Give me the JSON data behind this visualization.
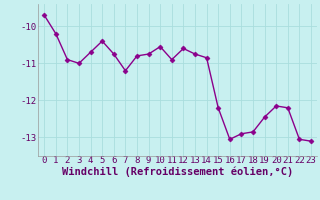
{
  "x": [
    0,
    1,
    2,
    3,
    4,
    5,
    6,
    7,
    8,
    9,
    10,
    11,
    12,
    13,
    14,
    15,
    16,
    17,
    18,
    19,
    20,
    21,
    22,
    23
  ],
  "y": [
    -9.7,
    -10.2,
    -10.9,
    -11.0,
    -10.7,
    -10.4,
    -10.75,
    -11.2,
    -10.8,
    -10.75,
    -10.55,
    -10.9,
    -10.6,
    -10.75,
    -10.85,
    -12.2,
    -13.05,
    -12.9,
    -12.85,
    -12.45,
    -12.15,
    -12.2,
    -13.05,
    -13.1
  ],
  "xlabel": "Windchill (Refroidissement éolien,°C)",
  "xlim": [
    -0.5,
    23.5
  ],
  "ylim": [
    -13.5,
    -9.4
  ],
  "yticks": [
    -13,
    -12,
    -11,
    -10
  ],
  "xticks": [
    0,
    1,
    2,
    3,
    4,
    5,
    6,
    7,
    8,
    9,
    10,
    11,
    12,
    13,
    14,
    15,
    16,
    17,
    18,
    19,
    20,
    21,
    22,
    23
  ],
  "line_color": "#8b008b",
  "marker": "D",
  "marker_size": 2.5,
  "bg_color": "#c8f0f0",
  "grid_color": "#aadddd",
  "xlabel_fontsize": 7.5,
  "tick_fontsize": 6.5,
  "line_width": 1.0
}
